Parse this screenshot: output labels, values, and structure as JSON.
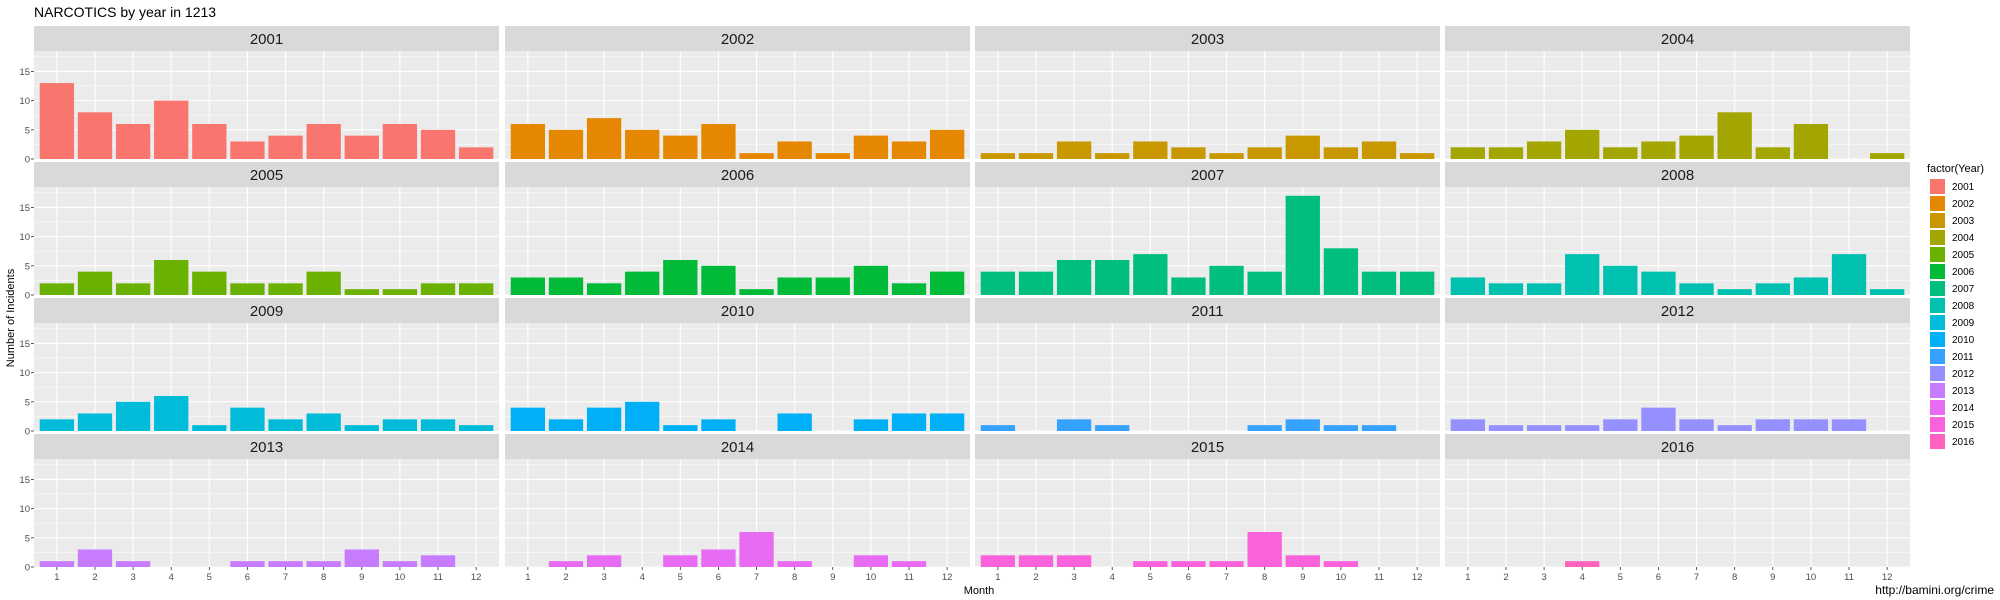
{
  "chart_data": {
    "type": "bar",
    "title": "NARCOTICS by year in 1213",
    "xlabel": "Month",
    "ylabel": "Number of Incidents",
    "legend_title": "factor(Year)",
    "legend_position": "right",
    "credit": "http://bamini.org/crime",
    "grid": true,
    "ylim": [
      0,
      18.5
    ],
    "yticks": [
      0,
      5,
      10,
      15
    ],
    "categories": [
      "1",
      "2",
      "3",
      "4",
      "5",
      "6",
      "7",
      "8",
      "9",
      "10",
      "11",
      "12"
    ],
    "series": [
      {
        "name": "2001",
        "color": "#F8766D",
        "values": [
          13,
          8,
          6,
          10,
          6,
          3,
          4,
          6,
          4,
          6,
          5,
          2
        ]
      },
      {
        "name": "2002",
        "color": "#E58700",
        "values": [
          6,
          5,
          7,
          5,
          4,
          6,
          1,
          3,
          1,
          4,
          3,
          5
        ]
      },
      {
        "name": "2003",
        "color": "#C99800",
        "values": [
          1,
          1,
          3,
          1,
          3,
          2,
          1,
          2,
          4,
          2,
          3,
          1
        ]
      },
      {
        "name": "2004",
        "color": "#A3A500",
        "values": [
          2,
          2,
          3,
          5,
          2,
          3,
          4,
          8,
          2,
          6,
          0,
          1
        ]
      },
      {
        "name": "2005",
        "color": "#6BB100",
        "values": [
          2,
          4,
          2,
          6,
          4,
          2,
          2,
          4,
          1,
          1,
          2,
          2
        ]
      },
      {
        "name": "2006",
        "color": "#00BA38",
        "values": [
          3,
          3,
          2,
          4,
          6,
          5,
          1,
          3,
          3,
          5,
          2,
          4
        ]
      },
      {
        "name": "2007",
        "color": "#00BF7D",
        "values": [
          4,
          4,
          6,
          6,
          7,
          3,
          5,
          4,
          17,
          8,
          4,
          4
        ]
      },
      {
        "name": "2008",
        "color": "#00C0AF",
        "values": [
          3,
          2,
          2,
          7,
          5,
          4,
          2,
          1,
          2,
          3,
          7,
          1
        ]
      },
      {
        "name": "2009",
        "color": "#00BCD8",
        "values": [
          2,
          3,
          5,
          6,
          1,
          4,
          2,
          3,
          1,
          2,
          2,
          1
        ]
      },
      {
        "name": "2010",
        "color": "#00B0F6",
        "values": [
          4,
          2,
          4,
          5,
          1,
          2,
          0,
          3,
          0,
          2,
          3,
          3
        ]
      },
      {
        "name": "2011",
        "color": "#35A2FF",
        "values": [
          1,
          0,
          2,
          1,
          0,
          0,
          0,
          1,
          2,
          1,
          1,
          0
        ]
      },
      {
        "name": "2012",
        "color": "#9590FF",
        "values": [
          2,
          1,
          1,
          1,
          2,
          4,
          2,
          1,
          2,
          2,
          2,
          0
        ]
      },
      {
        "name": "2013",
        "color": "#C77CFF",
        "values": [
          1,
          3,
          1,
          0,
          0,
          1,
          1,
          1,
          3,
          1,
          2,
          0
        ]
      },
      {
        "name": "2014",
        "color": "#E76BF3",
        "values": [
          0,
          1,
          2,
          0,
          2,
          3,
          6,
          1,
          0,
          2,
          1,
          0
        ]
      },
      {
        "name": "2015",
        "color": "#FA62DB",
        "values": [
          2,
          2,
          2,
          0,
          1,
          1,
          1,
          6,
          2,
          1,
          0,
          0
        ]
      },
      {
        "name": "2016",
        "color": "#FF62BC",
        "values": [
          0,
          0,
          0,
          1,
          0,
          0,
          0,
          0,
          0,
          0,
          0,
          0
        ]
      }
    ]
  }
}
